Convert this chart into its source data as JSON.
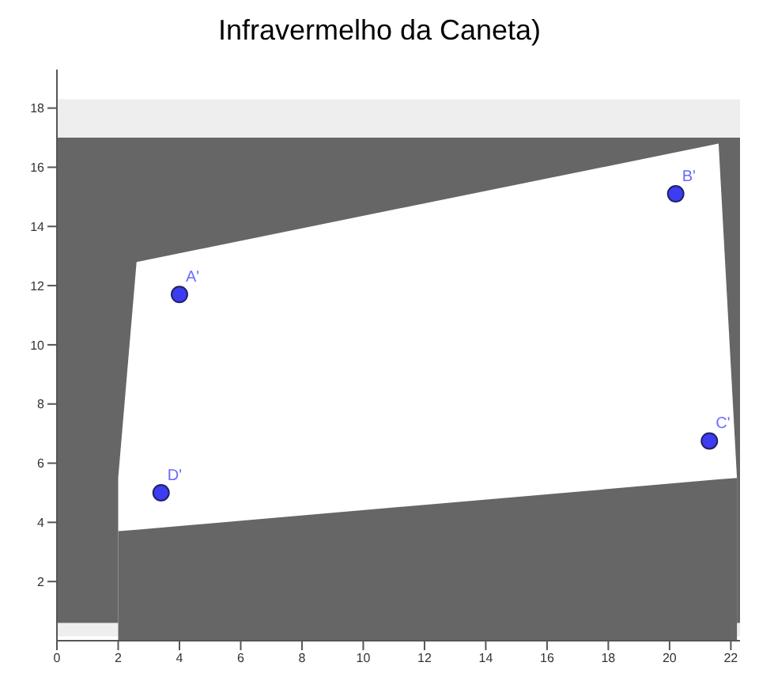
{
  "chart_data": {
    "type": "scatter",
    "title": "Infravermelho da Caneta)",
    "x": [
      4,
      20.2,
      21.3,
      3.4
    ],
    "series": [
      {
        "type": "area",
        "color": "#ffffff",
        "marker": "none",
        "x": [
          2,
          2.6,
          21.6,
          22.2
        ],
        "values": [
          5.5,
          12.8,
          16.8,
          5.5
        ]
      },
      {
        "type": "area",
        "color": "#666666",
        "marker": "none",
        "x": [
          2,
          2.6,
          21.6,
          22.2
        ],
        "values": [
          3.7,
          3.75,
          5.45,
          5.5
        ]
      },
      {
        "color": "#3c3cf0",
        "marker": "circle",
        "values": [
          11.7,
          15.1,
          6.75,
          5
        ]
      }
    ],
    "bands": [
      {
        "axis": "y",
        "from": 0.15,
        "to": 18.3,
        "color": "#eeeeee"
      },
      {
        "axis": "y",
        "from": 0.6,
        "to": 17,
        "color": "#666666"
      }
    ],
    "annotations": [
      {
        "text": "A'",
        "x": 4,
        "y": 11.7
      },
      {
        "text": "B'",
        "x": 20.2,
        "y": 15.1
      },
      {
        "text": "C'",
        "x": 21.3,
        "y": 6.75
      },
      {
        "text": "D'",
        "x": 3.4,
        "y": 5
      }
    ],
    "xlim": [
      0,
      22.3
    ],
    "ylim": [
      0,
      19.3
    ],
    "xticks": [
      0,
      2,
      4,
      6,
      8,
      10,
      12,
      14,
      16,
      18,
      20,
      22
    ],
    "yticks": [
      2,
      4,
      6,
      8,
      10,
      12,
      14,
      16,
      18
    ],
    "grid": false,
    "legend": false
  }
}
